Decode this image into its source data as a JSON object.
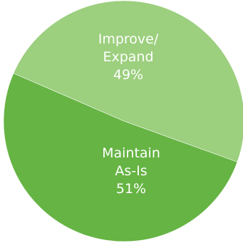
{
  "chart_data": {
    "type": "pie",
    "slices": [
      {
        "label_lines": [
          "Improve/",
          "Expand"
        ],
        "value_label": "49%",
        "value": 49,
        "color": "#9ccf7e"
      },
      {
        "label_lines": [
          "Maintain",
          "As-Is"
        ],
        "value_label": "51%",
        "value": 51,
        "color": "#66b444"
      }
    ],
    "title": "",
    "legend": "none"
  }
}
